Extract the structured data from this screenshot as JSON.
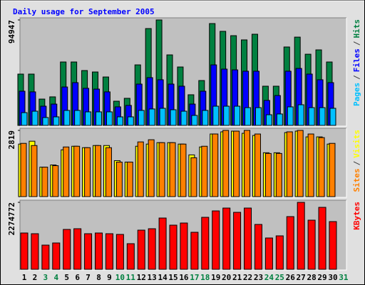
{
  "chart_data": [
    {
      "type": "bar",
      "title": "Daily usage for September 2005",
      "legend_separator": "/",
      "ylim": [
        0,
        94947
      ],
      "yticks": [
        94947
      ],
      "series": [
        {
          "name": "Hits",
          "color": "#008040",
          "values": [
            46200,
            46200,
            23700,
            25700,
            57100,
            57100,
            49400,
            48100,
            43600,
            21800,
            24400,
            54500,
            87200,
            94947,
            63500,
            52600,
            27600,
            40400,
            91700,
            84700,
            80800,
            77000,
            82100,
            35300,
            35300,
            70600,
            79500,
            64100,
            68000,
            57100,
            null
          ]
        },
        {
          "name": "Files",
          "color": "#0000ff",
          "values": [
            30800,
            30200,
            17300,
            19200,
            34600,
            38500,
            33400,
            32700,
            30200,
            16700,
            18000,
            37200,
            43000,
            41100,
            37200,
            35300,
            19200,
            30800,
            54500,
            50700,
            50000,
            48800,
            48800,
            22500,
            26900,
            48800,
            51300,
            46200,
            41100,
            38500,
            null
          ]
        },
        {
          "name": "Pages",
          "color": "#00c0ff",
          "values": [
            11500,
            12800,
            7100,
            7700,
            13500,
            13500,
            12200,
            12200,
            12200,
            7700,
            7700,
            13500,
            14800,
            15400,
            14100,
            12800,
            9000,
            13500,
            17300,
            17300,
            17300,
            16000,
            16000,
            9600,
            10300,
            16700,
            18600,
            16000,
            16000,
            15400,
            null
          ]
        }
      ]
    },
    {
      "type": "bar",
      "legend_separator": "/",
      "ylim": [
        0,
        2819
      ],
      "yticks": [
        2819
      ],
      "series": [
        {
          "name": "Visits",
          "color": "#ffff00",
          "values": [
            2237,
            2359,
            1256,
            1348,
            1992,
            2145,
            2084,
            2175,
            2175,
            1532,
            1471,
            2145,
            2237,
            2298,
            2298,
            2237,
            1777,
            2114,
            2666,
            2758,
            2788,
            2696,
            2604,
            1869,
            1869,
            2727,
            2788,
            2543,
            2543,
            2237,
            null
          ]
        },
        {
          "name": "Sites",
          "color": "#ff8000",
          "values": [
            2267,
            2175,
            1256,
            1318,
            2114,
            2145,
            2084,
            2175,
            2084,
            1471,
            1471,
            2329,
            2421,
            2298,
            2298,
            2237,
            1655,
            2145,
            2666,
            2819,
            2788,
            2819,
            2666,
            1838,
            1838,
            2758,
            2819,
            2666,
            2512,
            2267,
            null
          ]
        }
      ]
    },
    {
      "type": "bar",
      "ylim": [
        0,
        2274772
      ],
      "yticks": [
        2274772
      ],
      "categories": [
        "1",
        "2",
        "3",
        "4",
        "5",
        "6",
        "7",
        "8",
        "9",
        "10",
        "11",
        "12",
        "13",
        "14",
        "15",
        "16",
        "17",
        "18",
        "19",
        "20",
        "21",
        "22",
        "23",
        "24",
        "25",
        "26",
        "27",
        "28",
        "29",
        "30",
        "31"
      ],
      "label_colors": [
        "#000000",
        "#000000",
        "#008040",
        "#008040",
        "#000000",
        "#000000",
        "#000000",
        "#000000",
        "#000000",
        "#008040",
        "#008040",
        "#000000",
        "#000000",
        "#000000",
        "#000000",
        "#000000",
        "#008040",
        "#008040",
        "#000000",
        "#000000",
        "#000000",
        "#000000",
        "#000000",
        "#008040",
        "#008040",
        "#000000",
        "#000000",
        "#000000",
        "#000000",
        "#000000",
        "#008040"
      ],
      "series": [
        {
          "name": "KBytes",
          "color": "#ff0000",
          "values": [
            1234200,
            1210000,
            822800,
            895400,
            1355200,
            1379400,
            1210000,
            1234200,
            1210000,
            1185800,
            871200,
            1331000,
            1379400,
            1742400,
            1500400,
            1573000,
            1258400,
            1766600,
            1984400,
            2081200,
            1936000,
            2081200,
            1524600,
            1064800,
            1137400,
            1790800,
            2274772,
            1669800,
            2105400,
            1621400,
            null
          ]
        }
      ]
    }
  ]
}
